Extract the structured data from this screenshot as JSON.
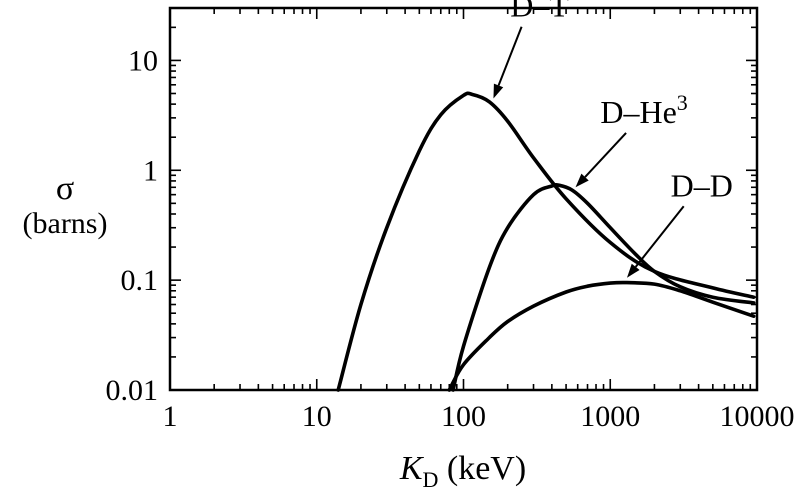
{
  "chart_data": {
    "type": "line",
    "xscale": "log",
    "yscale": "log",
    "xlim": [
      1,
      10000
    ],
    "ylim": [
      0.01,
      30
    ],
    "xticks": [
      {
        "value": 1,
        "label": "1"
      },
      {
        "value": 10,
        "label": "10"
      },
      {
        "value": 100,
        "label": "100"
      },
      {
        "value": 1000,
        "label": "1000"
      },
      {
        "value": 10000,
        "label": "10000"
      }
    ],
    "yticks": [
      {
        "value": 0.01,
        "label": "0.01"
      },
      {
        "value": 0.1,
        "label": "0.1"
      },
      {
        "value": 1,
        "label": "1"
      },
      {
        "value": 10,
        "label": "10"
      }
    ],
    "xlabel": {
      "main": "K",
      "sub": "D",
      "unit": "(keV)"
    },
    "ylabel": {
      "symbol": "σ",
      "unit": "(barns)"
    },
    "grid": false,
    "series": [
      {
        "name": "D–T",
        "label": {
          "base": "D–T",
          "sup": ""
        },
        "x": [
          14,
          20,
          30,
          50,
          70,
          100,
          115,
          150,
          200,
          300,
          500,
          1000,
          2000,
          5000,
          9500
        ],
        "y": [
          0.01,
          0.06,
          0.3,
          1.5,
          3.2,
          4.8,
          4.9,
          4.2,
          2.8,
          1.3,
          0.55,
          0.22,
          0.12,
          0.085,
          0.07
        ]
      },
      {
        "name": "D–He3",
        "label": {
          "base": "D–He",
          "sup": "3"
        },
        "x": [
          85,
          100,
          150,
          200,
          300,
          400,
          450,
          550,
          700,
          1000,
          1500,
          2000,
          3000,
          5000,
          9500
        ],
        "y": [
          0.01,
          0.025,
          0.13,
          0.3,
          0.6,
          0.72,
          0.73,
          0.66,
          0.5,
          0.3,
          0.17,
          0.12,
          0.087,
          0.07,
          0.062
        ]
      },
      {
        "name": "D–D",
        "label": {
          "base": "D–D",
          "sup": ""
        },
        "x": [
          80,
          100,
          150,
          200,
          300,
          500,
          700,
          1000,
          1300,
          2000,
          3000,
          5000,
          9500
        ],
        "y": [
          0.01,
          0.017,
          0.03,
          0.042,
          0.058,
          0.078,
          0.088,
          0.094,
          0.095,
          0.092,
          0.08,
          0.063,
          0.047
        ]
      }
    ],
    "annotations": [
      {
        "series": "D–T",
        "text_at": [
          330,
          25
        ],
        "arrow_to": [
          160,
          4.5
        ]
      },
      {
        "series": "D–He3",
        "text_at": [
          1700,
          2.7
        ],
        "arrow_to": [
          580,
          0.7
        ]
      },
      {
        "series": "D–D",
        "text_at": [
          4200,
          0.58
        ],
        "arrow_to": [
          1300,
          0.105
        ]
      }
    ]
  }
}
